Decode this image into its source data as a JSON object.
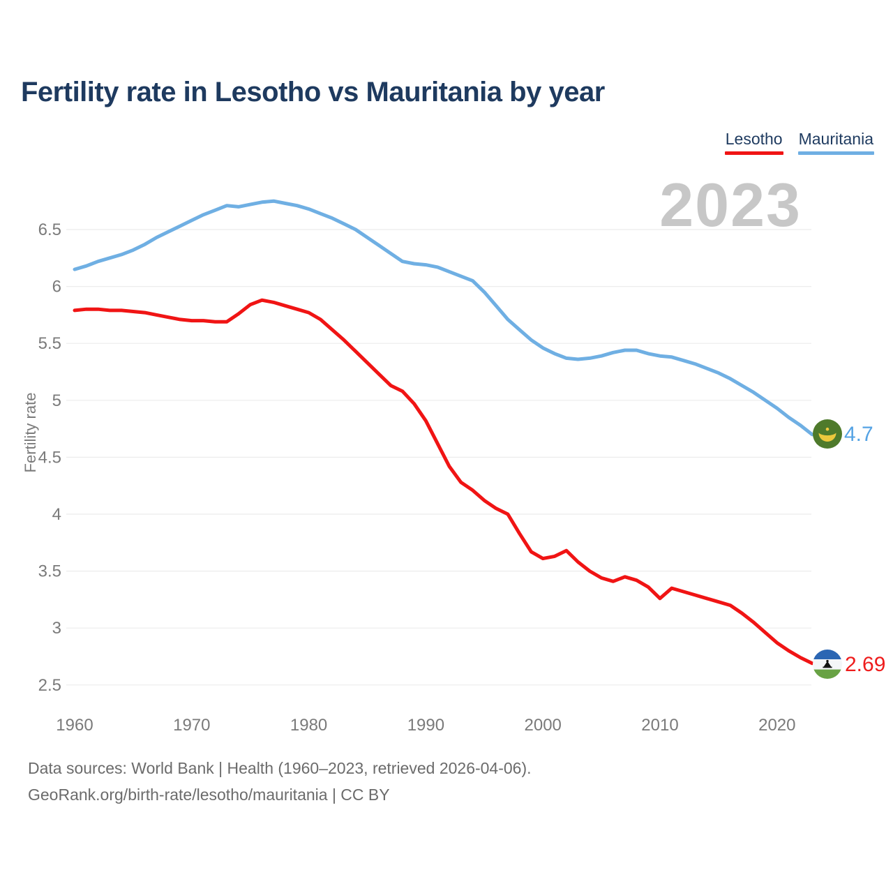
{
  "header": {
    "title": "Fertility rate in Lesotho vs Mauritania by year"
  },
  "legend": [
    {
      "label": "Lesotho",
      "color": "#f01414"
    },
    {
      "label": "Mauritania",
      "color": "#6fafe3"
    }
  ],
  "chart": {
    "watermark_year": "2023"
  },
  "chart_data": {
    "type": "line",
    "title": "Fertility rate in Lesotho vs Mauritania by year",
    "xlabel": "",
    "ylabel": "Fertility rate",
    "grid": true,
    "legend_position": "top-right",
    "ylim": [
      2.5,
      6.9
    ],
    "yticks": [
      6.5,
      6,
      5.5,
      5,
      4.5,
      4,
      3.5,
      3,
      2.5
    ],
    "xticks": [
      1960,
      1970,
      1980,
      1990,
      2000,
      2010,
      2020
    ],
    "x": [
      1960,
      1961,
      1962,
      1963,
      1964,
      1965,
      1966,
      1967,
      1968,
      1969,
      1970,
      1971,
      1972,
      1973,
      1974,
      1975,
      1976,
      1977,
      1978,
      1979,
      1980,
      1981,
      1982,
      1983,
      1984,
      1985,
      1986,
      1987,
      1988,
      1989,
      1990,
      1991,
      1992,
      1993,
      1994,
      1995,
      1996,
      1997,
      1998,
      1999,
      2000,
      2001,
      2002,
      2003,
      2004,
      2005,
      2006,
      2007,
      2008,
      2009,
      2010,
      2011,
      2012,
      2013,
      2014,
      2015,
      2016,
      2017,
      2018,
      2019,
      2020,
      2021,
      2022,
      2023
    ],
    "series": [
      {
        "name": "Lesotho",
        "color": "#f01414",
        "end_label": "2.69",
        "end_year": 2023,
        "values": [
          5.79,
          5.8,
          5.8,
          5.79,
          5.79,
          5.78,
          5.77,
          5.75,
          5.73,
          5.71,
          5.7,
          5.7,
          5.69,
          5.69,
          5.76,
          5.84,
          5.88,
          5.86,
          5.83,
          5.8,
          5.77,
          5.71,
          5.62,
          5.53,
          5.43,
          5.33,
          5.23,
          5.13,
          5.08,
          4.97,
          4.82,
          4.62,
          4.42,
          4.28,
          4.21,
          4.12,
          4.05,
          4.0,
          3.83,
          3.67,
          3.61,
          3.63,
          3.68,
          3.58,
          3.5,
          3.44,
          3.41,
          3.45,
          3.42,
          3.36,
          3.26,
          3.35,
          3.32,
          3.29,
          3.26,
          3.23,
          3.2,
          3.13,
          3.05,
          2.96,
          2.87,
          2.8,
          2.74,
          2.69
        ]
      },
      {
        "name": "Mauritania",
        "color": "#6fafe3",
        "end_label": "4.7",
        "end_year": 2023,
        "values": [
          6.15,
          6.18,
          6.22,
          6.25,
          6.28,
          6.32,
          6.37,
          6.43,
          6.48,
          6.53,
          6.58,
          6.63,
          6.67,
          6.71,
          6.7,
          6.72,
          6.74,
          6.75,
          6.73,
          6.71,
          6.68,
          6.64,
          6.6,
          6.55,
          6.5,
          6.43,
          6.36,
          6.29,
          6.22,
          6.2,
          6.19,
          6.17,
          6.13,
          6.09,
          6.05,
          5.95,
          5.83,
          5.71,
          5.62,
          5.53,
          5.46,
          5.41,
          5.37,
          5.36,
          5.37,
          5.39,
          5.42,
          5.44,
          5.44,
          5.41,
          5.39,
          5.38,
          5.35,
          5.32,
          5.28,
          5.24,
          5.19,
          5.13,
          5.07,
          5.0,
          4.93,
          4.85,
          4.78,
          4.7
        ]
      }
    ],
    "end_value_colors": {
      "lesotho": "#ee1c1c",
      "mauritania": "#55a3e4"
    },
    "tick_color": "#7a7a7a",
    "grid_color": "#ececec"
  },
  "footer": {
    "line1": "Data sources: World Bank | Health (1960–2023, retrieved 2026-04-06).",
    "line2": "GeoRank.org/birth-rate/lesotho/mauritania | CC BY"
  }
}
